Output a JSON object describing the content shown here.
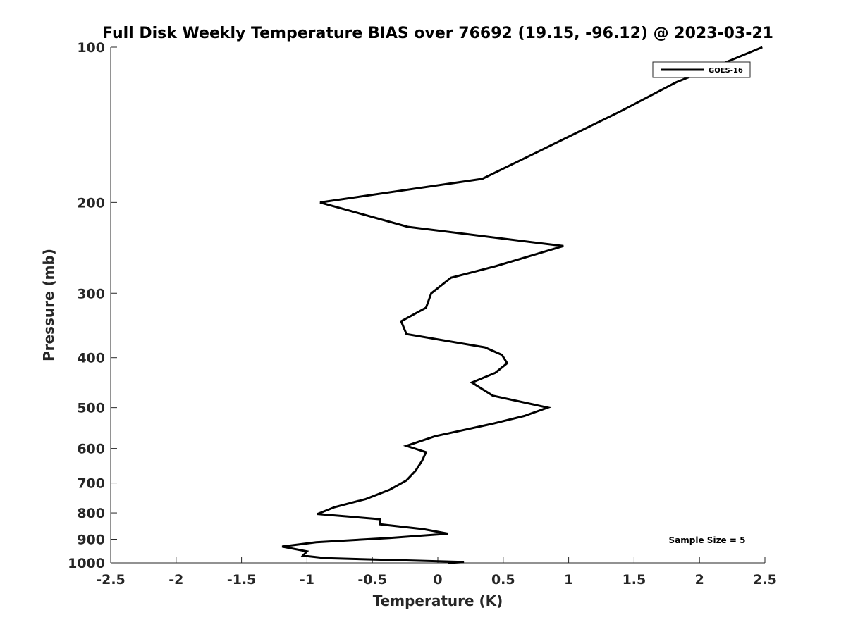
{
  "chart_data": {
    "type": "line",
    "title": "Full Disk Weekly Temperature BIAS over 76692 (19.15, -96.12) @ 2023-03-21",
    "xlabel": "Temperature (K)",
    "ylabel": "Pressure (mb)",
    "xlim": [
      -2.5,
      2.5
    ],
    "ylim": [
      100,
      1000
    ],
    "yscale": "log",
    "y_reversed": true,
    "grid": false,
    "legend_position": "top-right",
    "x_ticks": [
      -2.5,
      -2,
      -1.5,
      -1,
      -0.5,
      0,
      0.5,
      1,
      1.5,
      2,
      2.5
    ],
    "x_tick_labels": [
      "-2.5",
      "-2",
      "-1.5",
      "-1",
      "-0.5",
      "0",
      "0.5",
      "1",
      "1.5",
      "2",
      "2.5"
    ],
    "y_ticks": [
      100,
      200,
      300,
      400,
      500,
      600,
      700,
      800,
      900,
      1000
    ],
    "y_tick_labels": [
      "100",
      "200",
      "300",
      "400",
      "500",
      "600",
      "700",
      "800",
      "900",
      "1000"
    ],
    "series": [
      {
        "name": "GOES-16",
        "color": "#000000",
        "points": [
          [
            2.48,
            100
          ],
          [
            2.2,
            107
          ],
          [
            1.82,
            117
          ],
          [
            1.4,
            133
          ],
          [
            0.98,
            150
          ],
          [
            0.34,
            180
          ],
          [
            -0.9,
            200
          ],
          [
            -0.23,
            223
          ],
          [
            0.96,
            243
          ],
          [
            0.44,
            266
          ],
          [
            0.1,
            280
          ],
          [
            -0.05,
            300
          ],
          [
            -0.09,
            320
          ],
          [
            -0.28,
            340
          ],
          [
            -0.24,
            360
          ],
          [
            0.36,
            382
          ],
          [
            0.49,
            395
          ],
          [
            0.53,
            410
          ],
          [
            0.44,
            428
          ],
          [
            0.26,
            447
          ],
          [
            0.42,
            474
          ],
          [
            0.84,
            500
          ],
          [
            0.66,
            519
          ],
          [
            0.41,
            538
          ],
          [
            -0.02,
            568
          ],
          [
            -0.24,
            593
          ],
          [
            -0.09,
            610
          ],
          [
            -0.12,
            634
          ],
          [
            -0.17,
            663
          ],
          [
            -0.24,
            692
          ],
          [
            -0.37,
            722
          ],
          [
            -0.55,
            752
          ],
          [
            -0.79,
            780
          ],
          [
            -0.92,
            804
          ],
          [
            -0.44,
            823
          ],
          [
            -0.44,
            842
          ],
          [
            -0.11,
            860
          ],
          [
            0.08,
            878
          ],
          [
            -0.37,
            895
          ],
          [
            -0.93,
            912
          ],
          [
            -1.19,
            930
          ],
          [
            -1.0,
            950
          ],
          [
            -1.03,
            968
          ],
          [
            -0.86,
            979
          ],
          [
            0.2,
            996
          ],
          [
            0.08,
            1000
          ]
        ]
      }
    ],
    "annotations": [
      {
        "text": "Sample Size = 5",
        "position": "bottom-right"
      }
    ]
  }
}
